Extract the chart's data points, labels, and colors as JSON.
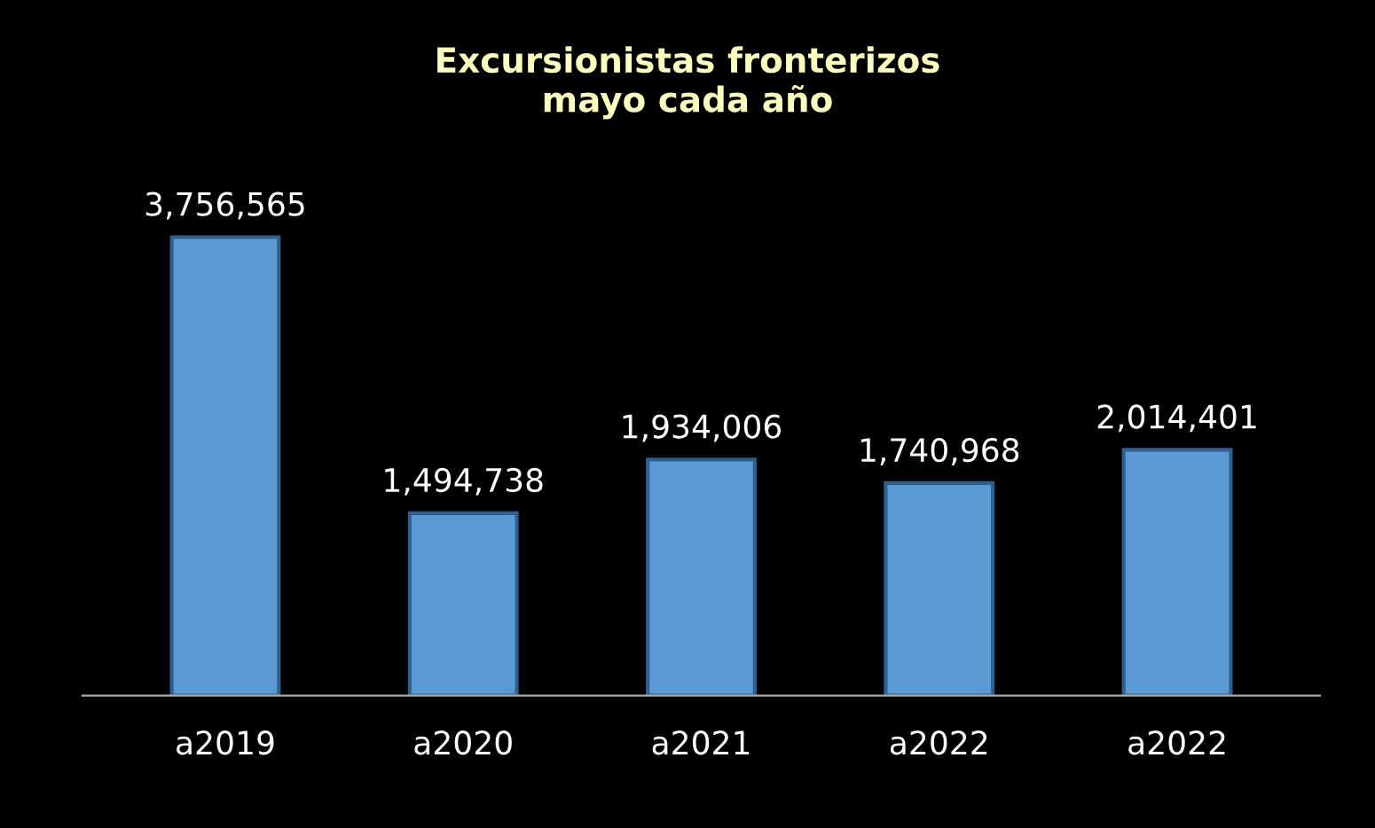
{
  "chart_data": {
    "type": "bar",
    "title": "Excursionistas fronterizos\nmayo cada año",
    "categories": [
      "a2019",
      "a2020",
      "a2021",
      "a2022",
      "a2022"
    ],
    "values": [
      3756565,
      1494738,
      1934006,
      1740968,
      2014401
    ],
    "value_labels": [
      "3,756,565",
      "1,494,738",
      "1,934,006",
      "1,740,968",
      "2,014,401"
    ],
    "color": "#5b9bd5",
    "grid": false,
    "legend": false
  }
}
